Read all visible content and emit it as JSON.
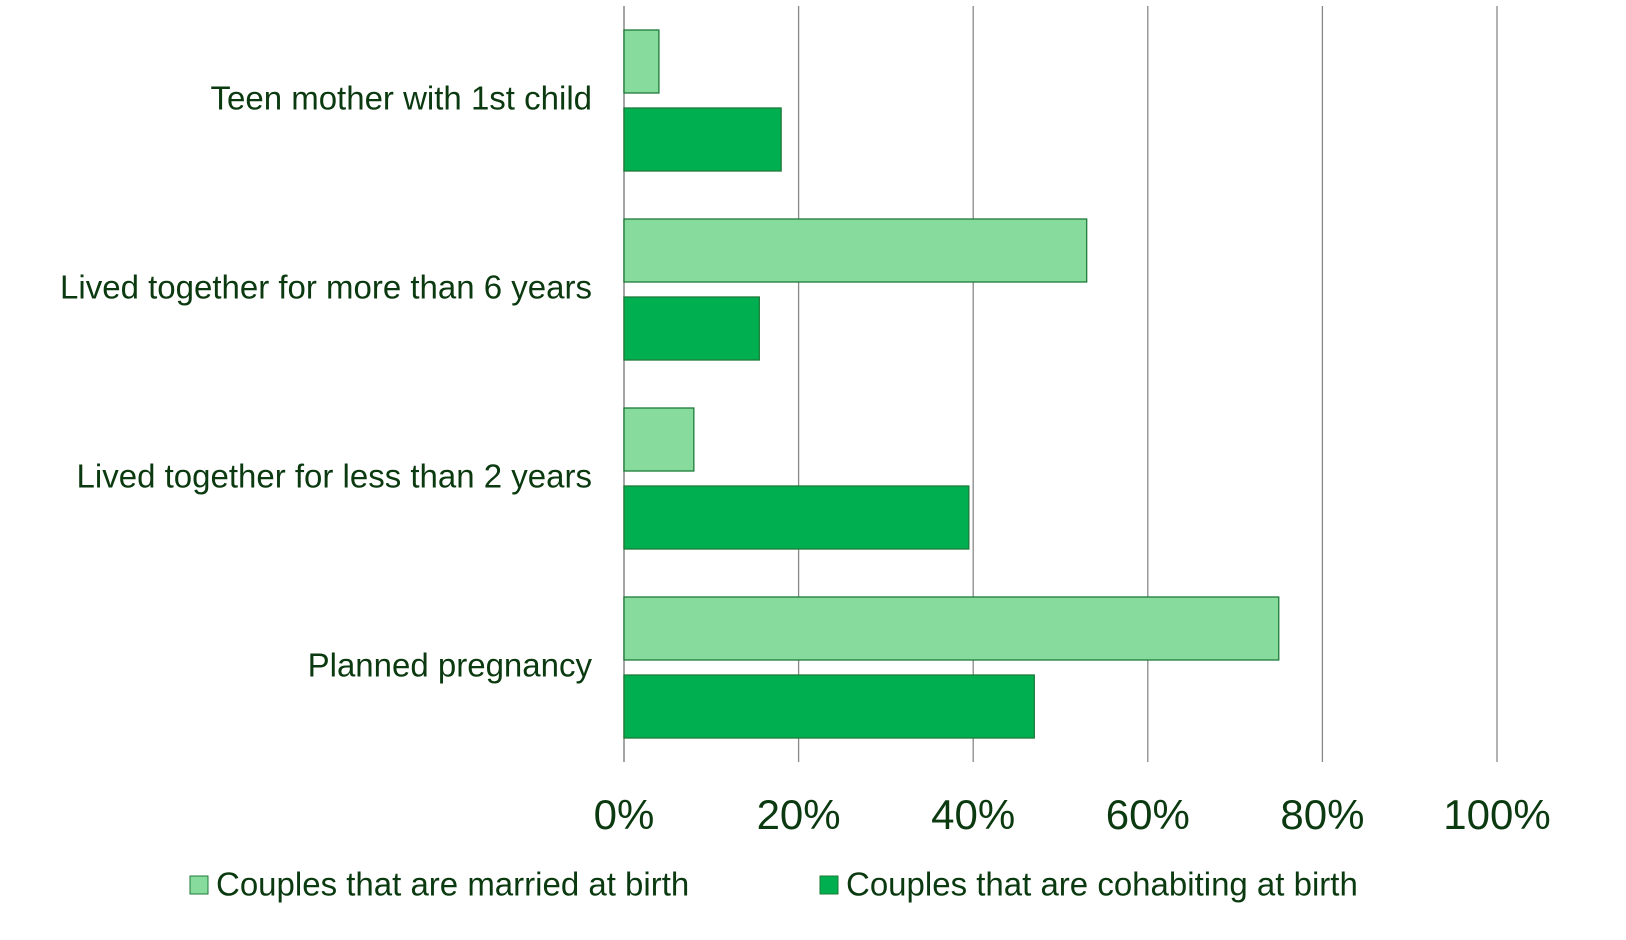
{
  "chart_data": {
    "type": "hbar",
    "categories": [
      "Teen mother with 1st child",
      "Lived together for more than 6 years",
      "Lived together for less than 2 years",
      "Planned pregnancy"
    ],
    "series": [
      {
        "name": "Couples that are married at birth",
        "color": "#87dc9d",
        "values": [
          4,
          53,
          8,
          75
        ]
      },
      {
        "name": "Couples that are cohabiting at birth",
        "color": "#00b050",
        "values": [
          18,
          15.5,
          39.5,
          47
        ]
      }
    ],
    "xlim": [
      0,
      100
    ],
    "xticks": [
      {
        "value": 0,
        "label": "0%"
      },
      {
        "value": 20,
        "label": "20%"
      },
      {
        "value": 40,
        "label": "40%"
      },
      {
        "value": 60,
        "label": "60%"
      },
      {
        "value": 80,
        "label": "80%"
      },
      {
        "value": 100,
        "label": "100%"
      }
    ],
    "grid": true,
    "legend": "bottom"
  }
}
